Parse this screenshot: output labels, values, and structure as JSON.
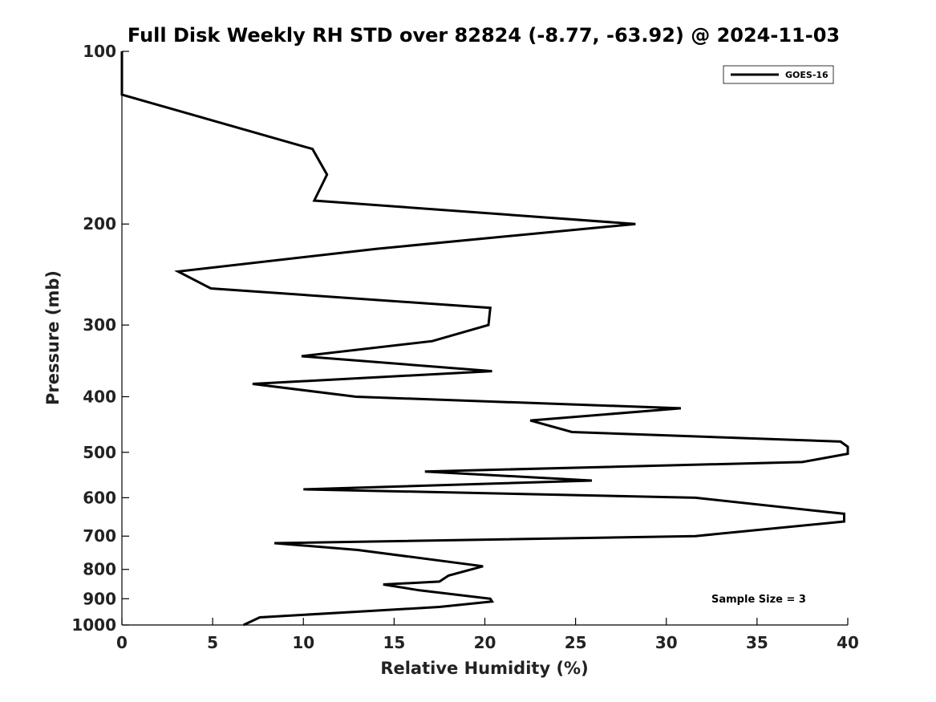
{
  "chart_data": {
    "type": "line",
    "title": "Full Disk Weekly RH STD over 82824 (-8.77, -63.92) @ 2024-11-03",
    "xlabel": "Relative Humidity (%)",
    "ylabel": "Pressure (mb)",
    "xlim": [
      0,
      40
    ],
    "ylim": [
      1000,
      100
    ],
    "yscale": "log",
    "x_ticks": [
      0,
      5,
      10,
      15,
      20,
      25,
      30,
      35,
      40
    ],
    "y_ticks": [
      100,
      200,
      300,
      400,
      500,
      600,
      700,
      800,
      900,
      1000
    ],
    "grid": false,
    "legend_position": "top-right",
    "annotation": "Sample Size = 3",
    "series": [
      {
        "name": "GOES-16",
        "color": "#000000",
        "points": [
          [
            0.0,
            100
          ],
          [
            0.0,
            119
          ],
          [
            10.5,
            148
          ],
          [
            11.3,
            164
          ],
          [
            10.6,
            182
          ],
          [
            28.3,
            200
          ],
          [
            14.0,
            221
          ],
          [
            3.1,
            242
          ],
          [
            4.9,
            259
          ],
          [
            20.3,
            280
          ],
          [
            20.2,
            300
          ],
          [
            17.1,
            320
          ],
          [
            9.9,
            340
          ],
          [
            20.4,
            361
          ],
          [
            7.2,
            380
          ],
          [
            12.9,
            400
          ],
          [
            30.8,
            419
          ],
          [
            22.5,
            440
          ],
          [
            24.8,
            461
          ],
          [
            39.6,
            479
          ],
          [
            40.0,
            489
          ],
          [
            40.0,
            503
          ],
          [
            37.5,
            520
          ],
          [
            16.7,
            540
          ],
          [
            25.9,
            560
          ],
          [
            10.0,
            580
          ],
          [
            31.6,
            600
          ],
          [
            39.8,
            640
          ],
          [
            39.8,
            660
          ],
          [
            31.6,
            700
          ],
          [
            8.4,
            720
          ],
          [
            13.0,
            740
          ],
          [
            19.9,
            790
          ],
          [
            18.0,
            820
          ],
          [
            17.5,
            840
          ],
          [
            14.4,
            850
          ],
          [
            16.4,
            870
          ],
          [
            20.3,
            900
          ],
          [
            20.4,
            910
          ],
          [
            17.5,
            930
          ],
          [
            7.6,
            970
          ],
          [
            6.7,
            1000
          ]
        ]
      }
    ]
  }
}
